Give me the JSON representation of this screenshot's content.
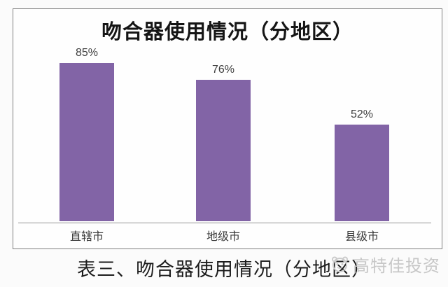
{
  "chart_data": {
    "type": "bar",
    "title": "吻合器使用情况（分地区）",
    "categories": [
      "直辖市",
      "地级市",
      "县级市"
    ],
    "values": [
      85,
      76,
      52
    ],
    "value_labels": [
      "85%",
      "76%",
      "52%"
    ],
    "xlabel": "",
    "ylabel": "",
    "ylim": [
      0,
      100
    ],
    "grid": false,
    "legend_position": "none",
    "bar_color": "#8264A6"
  },
  "caption": "表三、吻合器使用情况（分地区）",
  "watermark": {
    "text": "高特佳投资"
  },
  "colors": {
    "bar": "#8264A6",
    "frame_border": "#7f7f7f",
    "axis_line": "#949494",
    "label_text": "#3d3d3d",
    "watermark_gray": "#c7c7c7"
  }
}
